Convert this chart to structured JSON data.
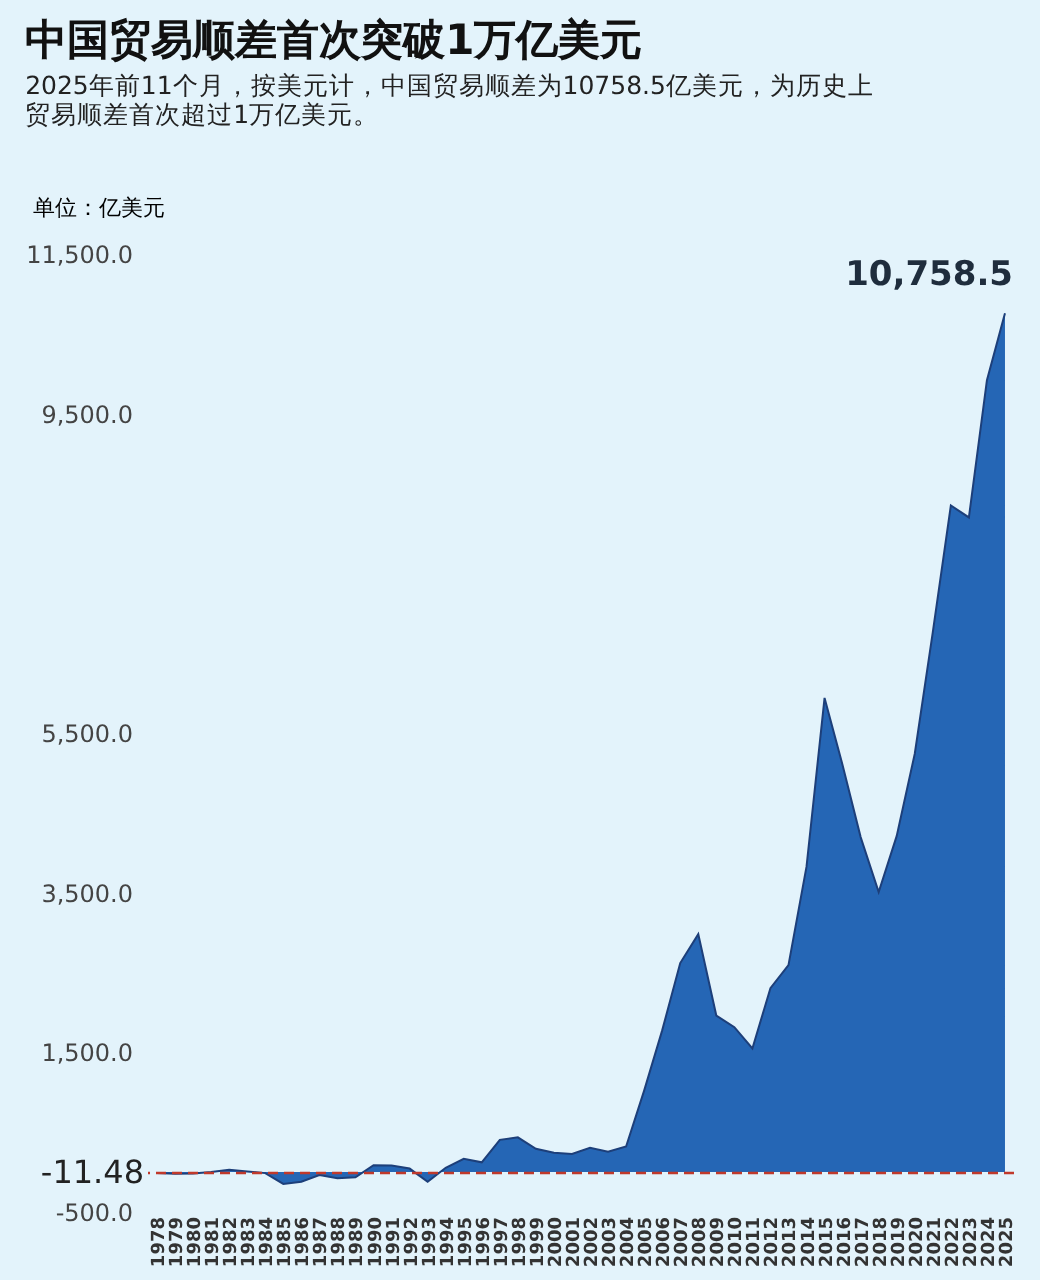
{
  "chart_data": {
    "type": "area",
    "title": "中国贸易顺差首次突破1万亿美元",
    "subtitle": [
      "2025年前11个月，按美元计，中国贸易顺差为10758.5亿美元，为历史上",
      "贸易顺差首次超过1万亿美元。"
    ],
    "ylabel": "单位：亿美元",
    "categories": [
      "1978",
      "1979",
      "1980",
      "1981",
      "1982",
      "1983",
      "1984",
      "1985",
      "1986",
      "1987",
      "1988",
      "1989",
      "1990",
      "1991",
      "1992",
      "1993",
      "1994",
      "1995",
      "1996",
      "1997",
      "1998",
      "1999",
      "2000",
      "2001",
      "2002",
      "2003",
      "2004",
      "2005",
      "2006",
      "2007",
      "2008",
      "2009",
      "2010",
      "2011",
      "2012",
      "2013",
      "2014",
      "2015",
      "2016",
      "2017",
      "2018",
      "2019",
      "2020",
      "2021",
      "2022",
      "2023",
      "2024",
      "2025"
    ],
    "values": [
      -11.48,
      -20,
      -19,
      0,
      30,
      8,
      -13,
      -149,
      -120,
      -38,
      -78,
      -66,
      87,
      81,
      44,
      -122,
      54,
      167,
      122,
      404,
      435,
      292,
      241,
      226,
      304,
      255,
      321,
      1020,
      1775,
      2618,
      2981,
      1961,
      1815,
      1549,
      2303,
      2592,
      3825,
      5939,
      5097,
      4196,
      3509,
      4211,
      5240,
      6764,
      8350,
      8200,
      9920,
      10758.5
    ],
    "color": "#2566b5",
    "ylim": [
      -500,
      11500
    ],
    "yticks": [
      {
        "value": -500,
        "label": "-500.0"
      },
      {
        "value": 1500,
        "label": "1,500.0"
      },
      {
        "value": 3500,
        "label": "3,500.0"
      },
      {
        "value": 5500,
        "label": "5,500.0"
      },
      {
        "value": 9500,
        "label": "9,500.0"
      },
      {
        "value": 11500,
        "label": "11,500.0"
      }
    ],
    "ref_lines": [
      {
        "axis": "y",
        "value": -11.48,
        "label": "-11.48",
        "color": "#c0392b",
        "line_style": "dashed"
      }
    ],
    "annotations": [
      {
        "text": "10,758.5",
        "x": "2025",
        "y": 10758.5
      }
    ],
    "grid": false
  }
}
